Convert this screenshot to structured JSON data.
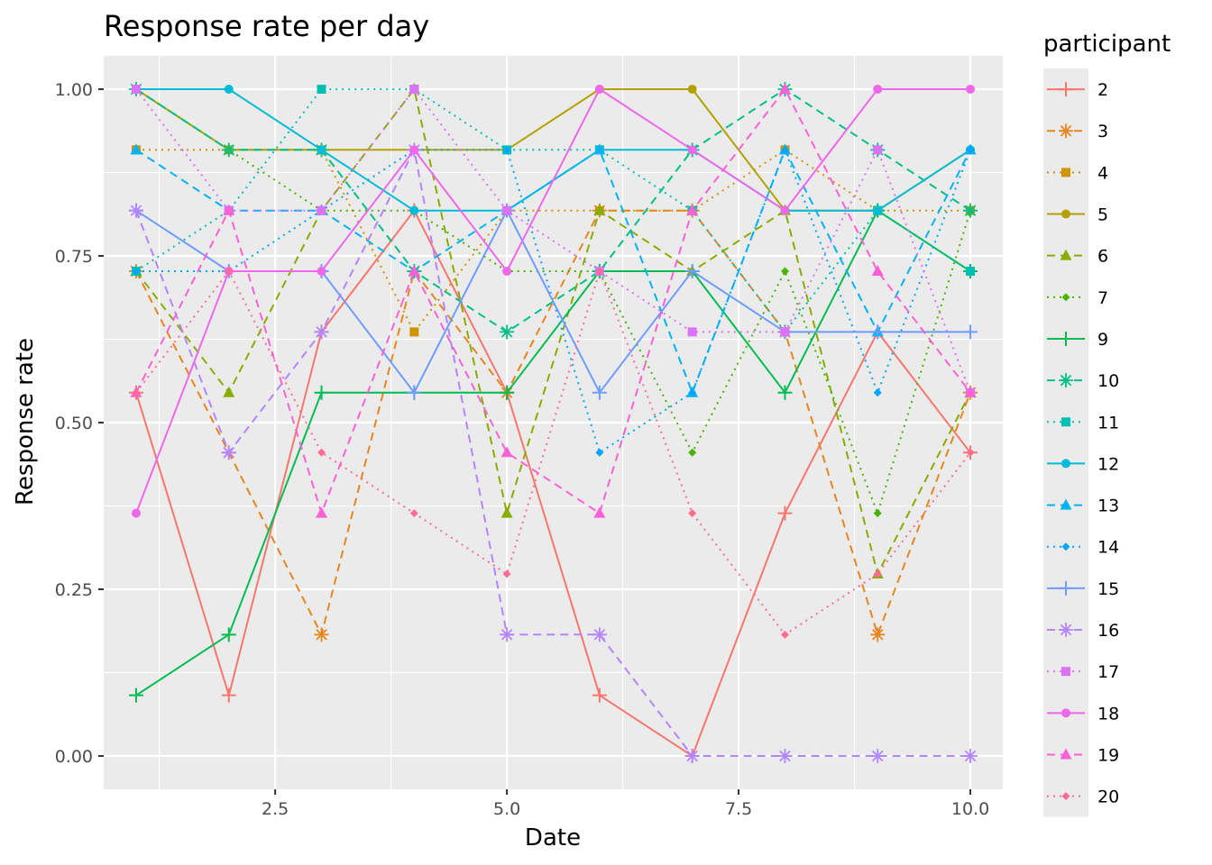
{
  "chart_data": {
    "type": "line",
    "title": "Response rate per day",
    "xlabel": "Date",
    "ylabel": "Response rate",
    "legend_title": "participant",
    "legend_position": "right",
    "grid": true,
    "xlim": [
      0.65,
      10.35
    ],
    "ylim": [
      -0.05,
      1.05
    ],
    "x_ticks": [
      2.5,
      5.0,
      7.5,
      10.0
    ],
    "x_tick_labels": [
      "2.5",
      "5.0",
      "7.5",
      "10.0"
    ],
    "y_ticks": [
      0.0,
      0.25,
      0.5,
      0.75,
      1.0
    ],
    "y_tick_labels": [
      "0.00",
      "0.25",
      "0.50",
      "0.75",
      "1.00"
    ],
    "x": [
      1,
      2,
      3,
      4,
      5,
      6,
      7,
      8,
      9,
      10
    ],
    "series": [
      {
        "name": "2",
        "color": "#F8766D",
        "dash": "solid",
        "marker": "plus",
        "values": [
          0.545,
          0.091,
          0.636,
          0.818,
          0.545,
          0.091,
          0.0,
          0.364,
          0.636,
          0.455
        ]
      },
      {
        "name": "3",
        "color": "#E7851E",
        "dash": "dashed",
        "marker": "asterisk",
        "values": [
          0.727,
          0.455,
          0.182,
          0.727,
          0.545,
          0.818,
          0.818,
          0.636,
          0.182,
          0.545
        ]
      },
      {
        "name": "4",
        "color": "#D09400",
        "dash": "dotted",
        "marker": "square",
        "values": [
          0.909,
          0.909,
          0.909,
          0.636,
          0.818,
          0.818,
          0.818,
          0.909,
          0.818,
          0.818
        ]
      },
      {
        "name": "5",
        "color": "#B2A100",
        "dash": "solid",
        "marker": "circle",
        "values": [
          1.0,
          0.909,
          0.909,
          0.909,
          0.909,
          1.0,
          1.0,
          0.818,
          0.818,
          0.909
        ]
      },
      {
        "name": "6",
        "color": "#89AC00",
        "dash": "dashed",
        "marker": "triangle",
        "values": [
          0.727,
          0.545,
          0.818,
          1.0,
          0.364,
          0.818,
          0.727,
          0.818,
          0.273,
          0.545
        ]
      },
      {
        "name": "7",
        "color": "#45B500",
        "dash": "dotted",
        "marker": "diamond",
        "values": [
          1.0,
          0.909,
          0.818,
          0.818,
          0.727,
          0.727,
          0.455,
          0.727,
          0.364,
          0.818
        ]
      },
      {
        "name": "9",
        "color": "#00BC51",
        "dash": "solid",
        "marker": "plus",
        "values": [
          0.091,
          0.182,
          0.545,
          0.545,
          0.545,
          0.727,
          0.727,
          0.545,
          0.818,
          0.727
        ]
      },
      {
        "name": "10",
        "color": "#00C087",
        "dash": "dashed",
        "marker": "asterisk",
        "values": [
          1.0,
          0.909,
          0.909,
          0.727,
          0.636,
          0.727,
          0.909,
          1.0,
          0.909,
          0.818
        ]
      },
      {
        "name": "11",
        "color": "#00C0B2",
        "dash": "dotted",
        "marker": "square",
        "values": [
          0.727,
          0.818,
          1.0,
          1.0,
          0.909,
          0.909,
          0.818,
          0.636,
          0.818,
          0.727
        ]
      },
      {
        "name": "12",
        "color": "#00BCD6",
        "dash": "solid",
        "marker": "circle",
        "values": [
          1.0,
          1.0,
          0.909,
          0.818,
          0.818,
          0.909,
          0.909,
          0.818,
          0.818,
          0.909
        ]
      },
      {
        "name": "13",
        "color": "#00B3F2",
        "dash": "dashed",
        "marker": "triangle",
        "values": [
          0.909,
          0.818,
          0.818,
          0.727,
          0.818,
          0.909,
          0.545,
          0.909,
          0.636,
          0.909
        ]
      },
      {
        "name": "14",
        "color": "#00A6FF",
        "dash": "dotted",
        "marker": "diamond",
        "values": [
          0.727,
          0.727,
          0.818,
          0.909,
          0.909,
          0.455,
          0.545,
          0.909,
          0.545,
          0.909
        ]
      },
      {
        "name": "15",
        "color": "#6F9CFF",
        "dash": "solid",
        "marker": "plus",
        "values": [
          0.818,
          0.727,
          0.727,
          0.545,
          0.818,
          0.545,
          0.727,
          0.636,
          0.636,
          0.636
        ]
      },
      {
        "name": "16",
        "color": "#B385FF",
        "dash": "dashed",
        "marker": "asterisk",
        "values": [
          0.818,
          0.455,
          0.636,
          0.909,
          0.182,
          0.182,
          0.0,
          0.0,
          0.0,
          0.0
        ]
      },
      {
        "name": "17",
        "color": "#DC71FA",
        "dash": "dotted",
        "marker": "square",
        "values": [
          1.0,
          0.818,
          0.818,
          1.0,
          0.818,
          0.727,
          0.636,
          0.636,
          0.909,
          0.545
        ]
      },
      {
        "name": "18",
        "color": "#EF67EB",
        "dash": "solid",
        "marker": "circle",
        "values": [
          0.364,
          0.727,
          0.727,
          0.909,
          0.727,
          1.0,
          0.909,
          0.818,
          1.0,
          1.0
        ]
      },
      {
        "name": "19",
        "color": "#FB61D7",
        "dash": "dashed",
        "marker": "triangle",
        "values": [
          0.545,
          0.818,
          0.364,
          0.727,
          0.455,
          0.364,
          0.818,
          1.0,
          0.727,
          0.545
        ]
      },
      {
        "name": "20",
        "color": "#FF6C91",
        "dash": "dotted",
        "marker": "diamond",
        "values": [
          0.545,
          0.727,
          0.455,
          0.364,
          0.273,
          0.727,
          0.364,
          0.182,
          0.273,
          0.455
        ]
      }
    ]
  }
}
